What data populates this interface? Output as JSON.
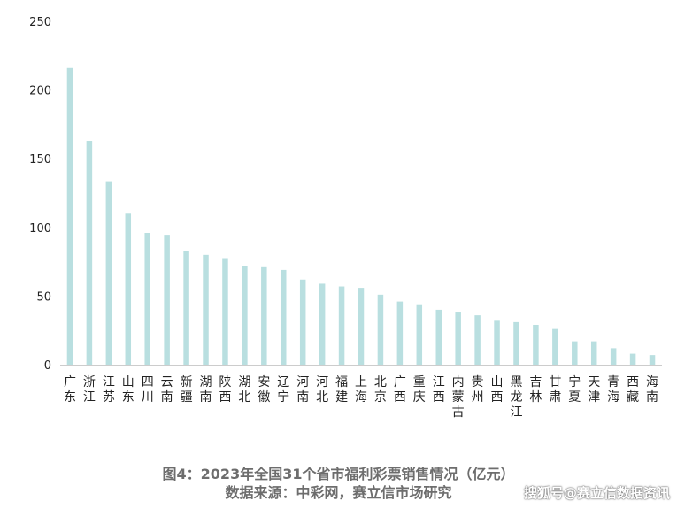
{
  "chart_data": {
    "type": "bar",
    "title": "",
    "xlabel": "",
    "ylabel": "",
    "ylim": [
      0,
      250
    ],
    "yticks": [
      0,
      50,
      100,
      150,
      200,
      250
    ],
    "grid": false,
    "legend": "none",
    "bar_color": "#b9dfe0",
    "axis_color": "#cccccc",
    "categories": [
      "广东",
      "浙江",
      "江苏",
      "山东",
      "四川",
      "云南",
      "新疆",
      "湖南",
      "陕西",
      "湖北",
      "安徽",
      "辽宁",
      "河南",
      "河北",
      "福建",
      "上海",
      "北京",
      "广西",
      "重庆",
      "江西",
      "内蒙古",
      "贵州",
      "山西",
      "黑龙江",
      "吉林",
      "甘肃",
      "宁夏",
      "天津",
      "青海",
      "西藏",
      "海南"
    ],
    "values": [
      216,
      163,
      133,
      110,
      96,
      94,
      83,
      80,
      77,
      72,
      71,
      69,
      62,
      59,
      57,
      56,
      51,
      46,
      44,
      40,
      38,
      36,
      32,
      31,
      29,
      26,
      17,
      17,
      12,
      8,
      7
    ]
  },
  "caption": {
    "title": "图4：2023年全国31个省市福利彩票销售情况（亿元）",
    "source": "数据来源：中彩网，赛立信市场研究"
  },
  "watermark": "搜狐号@赛立信数据资讯"
}
